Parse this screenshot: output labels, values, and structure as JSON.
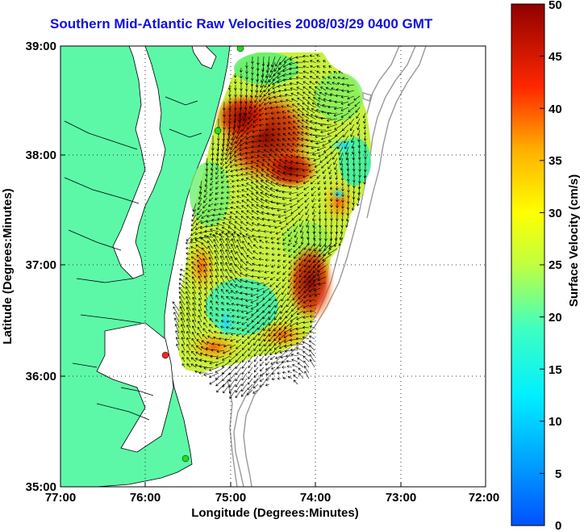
{
  "title": "Southern Mid-Atlantic Raw Velocities 2008/03/29 0400 GMT",
  "xaxis": {
    "label": "Longitude (Degrees:Minutes)",
    "ticks": [
      "77:00",
      "76:00",
      "75:00",
      "74:00",
      "73:00",
      "72:00"
    ]
  },
  "yaxis": {
    "label": "Latitude (Degrees:Minutes)",
    "ticks": [
      "39:00",
      "38:00",
      "37:00",
      "36:00",
      "35:00"
    ]
  },
  "colorbar": {
    "label": "Surface Velocity (cm/s)",
    "ticks": [
      "50",
      "45",
      "40",
      "35",
      "30",
      "25",
      "20",
      "15",
      "10",
      "5",
      "0"
    ],
    "min": 0,
    "max": 50
  },
  "map": {
    "land_color": "#5cf8a8",
    "water_color": "#ffffff",
    "lon_range": [
      -77,
      -72
    ],
    "lat_range": [
      35,
      39
    ],
    "stations": [
      {
        "lat": 38.92,
        "lon": -74.95,
        "color": "#22dd22"
      },
      {
        "lat": 38.23,
        "lon": -75.15,
        "color": "#22dd22"
      },
      {
        "lat": 36.18,
        "lon": -75.75,
        "color": "#ff2222"
      },
      {
        "lat": 35.25,
        "lon": -75.52,
        "color": "#22dd22"
      }
    ]
  }
}
